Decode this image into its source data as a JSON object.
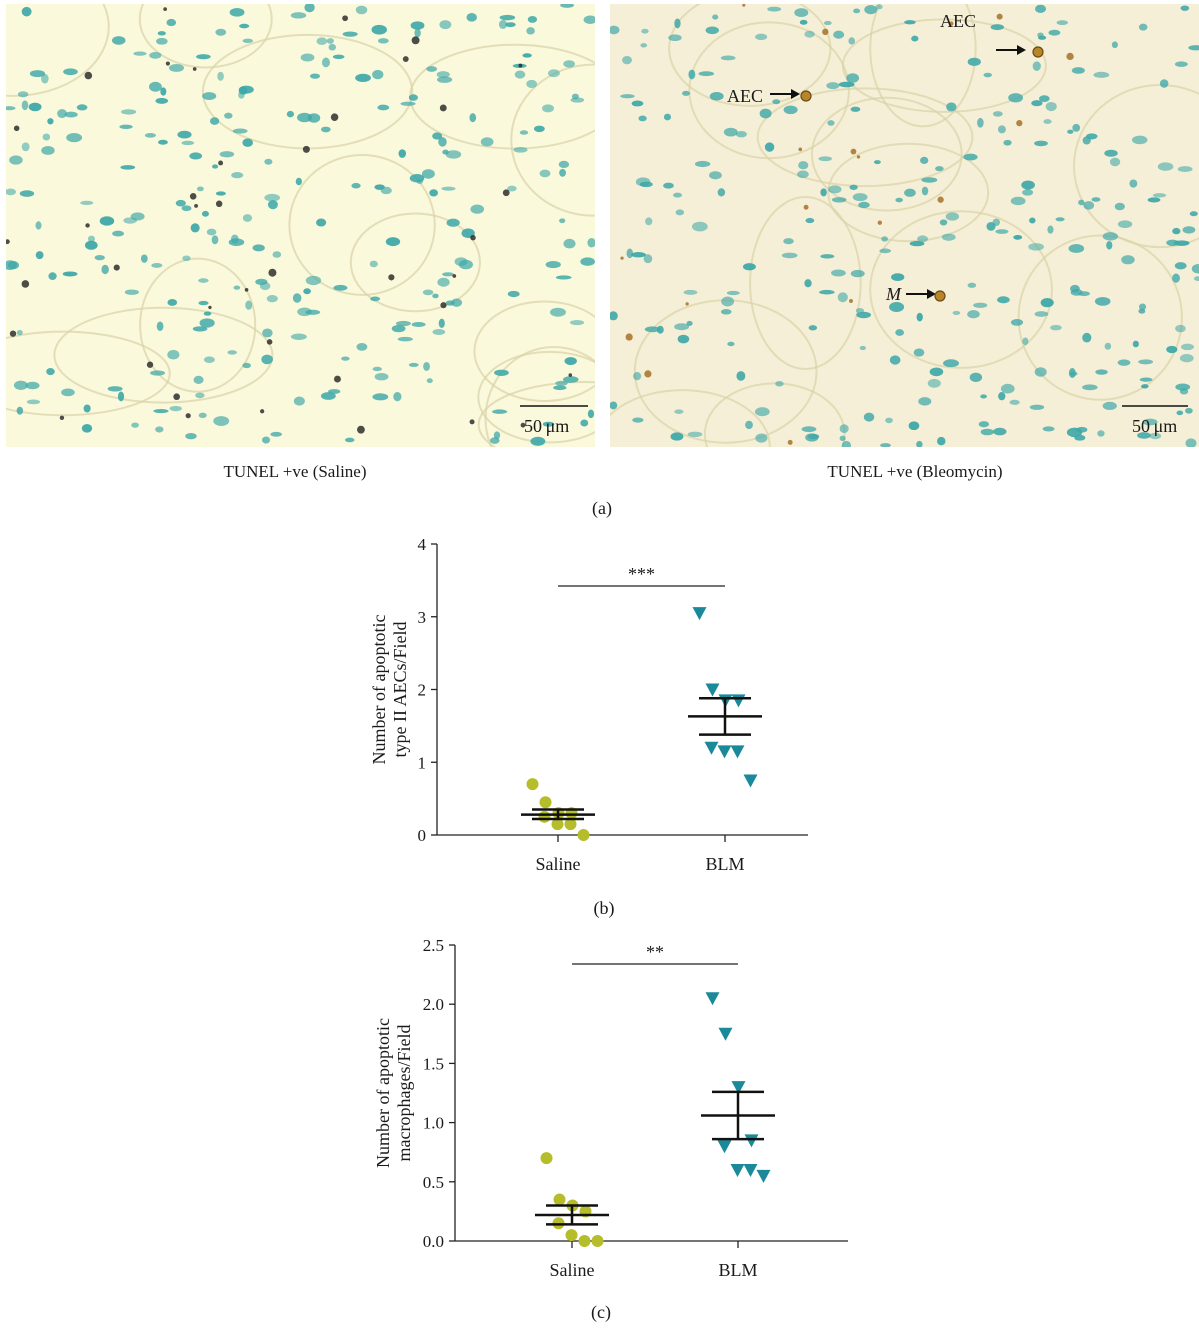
{
  "figure": {
    "panel_a": {
      "label": "(a)",
      "left_caption": "TUNEL +ve (Saline)",
      "right_caption": "TUNEL +ve (Bleomycin)",
      "scale_bar_left": "50 μm",
      "scale_bar_right": "50 μm",
      "annotations": [
        "AEC",
        "AEC",
        "M"
      ]
    },
    "panel_b": {
      "label": "(b)"
    },
    "panel_c": {
      "label": "(c)"
    }
  },
  "colors": {
    "saline_marker": "#b5bd2a",
    "blm_marker": "#1a8a9a",
    "axis": "#222222",
    "nucleus": "#3fa8a8",
    "tissue_left": "#fbf9dc",
    "tissue_right": "#f6efd7"
  },
  "chart_data": [
    {
      "type": "scatter",
      "ylabel": "Number of apoptotic type II AECs/Field",
      "ylabel_lines": [
        "Number of apoptotic",
        "type II AECs/Field"
      ],
      "categories": [
        "Saline",
        "BLM"
      ],
      "ylim": [
        0,
        4
      ],
      "yticks": [
        "0",
        "1",
        "2",
        "3",
        "4"
      ],
      "significance": "***",
      "series": [
        {
          "category": "Saline",
          "marker": "circle",
          "values": [
            0.7,
            0.45,
            0.3,
            0.3,
            0.25,
            0.15,
            0.15,
            0.0
          ],
          "mean": 0.28,
          "sem_low": 0.22,
          "sem_high": 0.35
        },
        {
          "category": "BLM",
          "marker": "triangle-down",
          "values": [
            3.05,
            2.0,
            1.85,
            1.85,
            1.2,
            1.15,
            1.15,
            0.75
          ],
          "mean": 1.63,
          "sem_low": 1.38,
          "sem_high": 1.88
        }
      ]
    },
    {
      "type": "scatter",
      "ylabel": "Number of apoptotic macrophages/Field",
      "ylabel_lines": [
        "Number of apoptotic",
        "macrophages/Field"
      ],
      "categories": [
        "Saline",
        "BLM"
      ],
      "ylim": [
        0,
        2.5
      ],
      "yticks": [
        "0.0",
        "0.5",
        "1.0",
        "1.5",
        "2.0",
        "2.5"
      ],
      "significance": "**",
      "series": [
        {
          "category": "Saline",
          "marker": "circle",
          "values": [
            0.7,
            0.35,
            0.3,
            0.25,
            0.15,
            0.05,
            0.0,
            0.0
          ],
          "mean": 0.22,
          "sem_low": 0.14,
          "sem_high": 0.3
        },
        {
          "category": "BLM",
          "marker": "triangle-down",
          "values": [
            2.05,
            1.75,
            1.3,
            0.85,
            0.8,
            0.6,
            0.6,
            0.55
          ],
          "mean": 1.06,
          "sem_low": 0.86,
          "sem_high": 1.26
        }
      ]
    }
  ]
}
